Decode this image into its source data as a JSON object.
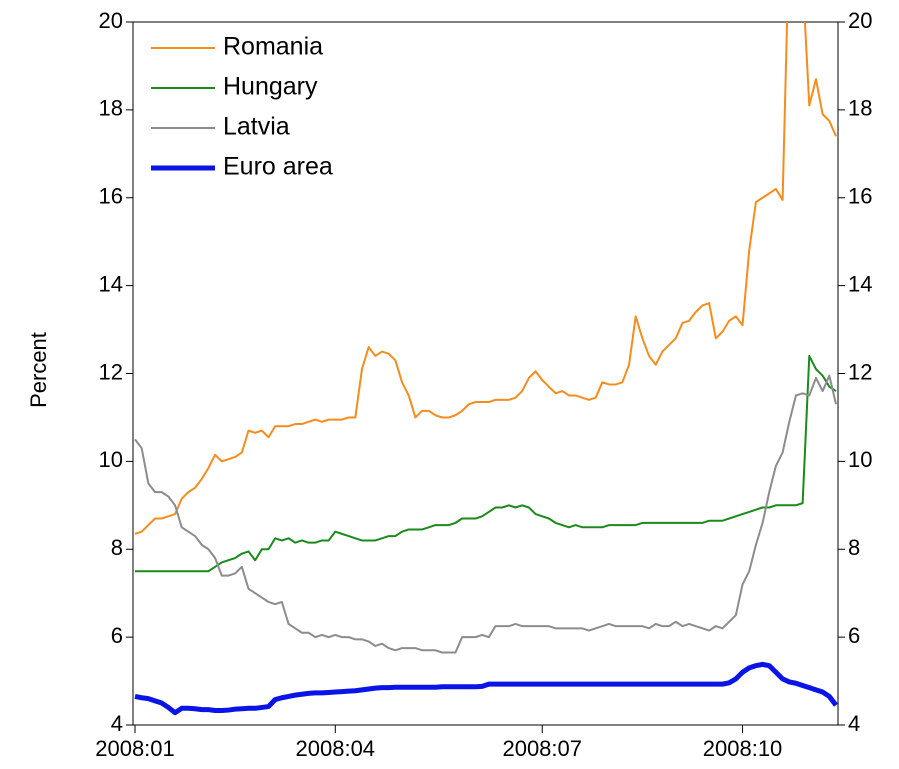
{
  "chart_data": {
    "type": "line",
    "y_label": "Percent",
    "categories": [
      "2008:01",
      null,
      null,
      null,
      null,
      null,
      null,
      null,
      null,
      null,
      null,
      null,
      null,
      null,
      null,
      null,
      null,
      null,
      null,
      null,
      null,
      null,
      null,
      null,
      null,
      null,
      null,
      null,
      null,
      null,
      "2008:04",
      null,
      null,
      null,
      null,
      null,
      null,
      null,
      null,
      null,
      null,
      null,
      null,
      null,
      null,
      null,
      null,
      null,
      null,
      null,
      null,
      null,
      null,
      null,
      null,
      null,
      null,
      null,
      null,
      null,
      null,
      "2008:07",
      null,
      null,
      null,
      null,
      null,
      null,
      null,
      null,
      null,
      null,
      null,
      null,
      null,
      null,
      null,
      null,
      null,
      null,
      null,
      null,
      null,
      null,
      null,
      null,
      null,
      null,
      null,
      null,
      null,
      "2008:10",
      null,
      null,
      null,
      null,
      null,
      null,
      null,
      null,
      null,
      null,
      null,
      null,
      null,
      null
    ],
    "series": [
      {
        "name": "Romania",
        "color": "#f58c1e",
        "width": 2,
        "values": [
          8.35,
          8.4,
          8.55,
          8.7,
          8.7,
          8.75,
          8.8,
          9.15,
          9.3,
          9.4,
          9.6,
          9.85,
          10.15,
          10.0,
          10.05,
          10.1,
          10.2,
          10.7,
          10.65,
          10.7,
          10.55,
          10.8,
          10.8,
          10.8,
          10.85,
          10.85,
          10.9,
          10.95,
          10.9,
          10.95,
          10.95,
          10.95,
          11.0,
          11.0,
          12.1,
          12.6,
          12.4,
          12.5,
          12.45,
          12.3,
          11.8,
          11.5,
          11.0,
          11.15,
          11.15,
          11.05,
          11.0,
          11.0,
          11.05,
          11.15,
          11.3,
          11.35,
          11.35,
          11.35,
          11.4,
          11.4,
          11.4,
          11.45,
          11.6,
          11.9,
          12.05,
          11.85,
          11.7,
          11.55,
          11.6,
          11.5,
          11.5,
          11.45,
          11.4,
          11.45,
          11.8,
          11.75,
          11.75,
          11.8,
          12.2,
          13.3,
          12.8,
          12.4,
          12.2,
          12.5,
          12.65,
          12.8,
          13.15,
          13.2,
          13.4,
          13.55,
          13.6,
          12.8,
          12.95,
          13.2,
          13.3,
          13.1,
          14.8,
          15.9,
          16.0,
          16.1,
          16.2,
          15.95,
          22,
          22,
          21,
          18.1,
          18.7,
          17.9,
          17.75,
          17.4
        ]
      },
      {
        "name": "Hungary",
        "color": "#1a8a1a",
        "width": 2,
        "values": [
          7.5,
          7.5,
          7.5,
          7.5,
          7.5,
          7.5,
          7.5,
          7.5,
          7.5,
          7.5,
          7.5,
          7.5,
          7.6,
          7.7,
          7.75,
          7.8,
          7.9,
          7.95,
          7.75,
          8.0,
          8.0,
          8.25,
          8.2,
          8.25,
          8.15,
          8.2,
          8.15,
          8.15,
          8.2,
          8.2,
          8.4,
          8.35,
          8.3,
          8.25,
          8.2,
          8.2,
          8.2,
          8.25,
          8.3,
          8.3,
          8.4,
          8.45,
          8.45,
          8.45,
          8.5,
          8.55,
          8.55,
          8.55,
          8.6,
          8.7,
          8.7,
          8.7,
          8.75,
          8.85,
          8.95,
          8.95,
          9.0,
          8.95,
          9.0,
          8.95,
          8.8,
          8.75,
          8.7,
          8.6,
          8.55,
          8.5,
          8.55,
          8.5,
          8.5,
          8.5,
          8.5,
          8.55,
          8.55,
          8.55,
          8.55,
          8.55,
          8.6,
          8.6,
          8.6,
          8.6,
          8.6,
          8.6,
          8.6,
          8.6,
          8.6,
          8.6,
          8.65,
          8.65,
          8.65,
          8.7,
          8.75,
          8.8,
          8.85,
          8.9,
          8.95,
          8.95,
          9.0,
          9.0,
          9.0,
          9.0,
          9.05,
          12.4,
          12.1,
          11.95,
          11.7,
          11.6
        ]
      },
      {
        "name": "Latvia",
        "color": "#8c8c8c",
        "width": 2,
        "values": [
          10.5,
          10.3,
          9.5,
          9.3,
          9.3,
          9.2,
          9.0,
          8.5,
          8.4,
          8.3,
          8.1,
          8.0,
          7.8,
          7.4,
          7.4,
          7.45,
          7.6,
          7.1,
          7.0,
          6.9,
          6.8,
          6.75,
          6.8,
          6.3,
          6.2,
          6.1,
          6.1,
          6.0,
          6.05,
          6.0,
          6.05,
          6.0,
          6.0,
          5.95,
          5.95,
          5.9,
          5.8,
          5.85,
          5.75,
          5.7,
          5.75,
          5.75,
          5.75,
          5.7,
          5.7,
          5.7,
          5.65,
          5.65,
          5.65,
          6.0,
          6.0,
          6.0,
          6.05,
          6.0,
          6.25,
          6.25,
          6.25,
          6.3,
          6.25,
          6.25,
          6.25,
          6.25,
          6.25,
          6.2,
          6.2,
          6.2,
          6.2,
          6.2,
          6.15,
          6.2,
          6.25,
          6.3,
          6.25,
          6.25,
          6.25,
          6.25,
          6.25,
          6.2,
          6.3,
          6.25,
          6.25,
          6.35,
          6.25,
          6.3,
          6.25,
          6.2,
          6.15,
          6.25,
          6.2,
          6.35,
          6.5,
          7.2,
          7.5,
          8.1,
          8.6,
          9.3,
          9.9,
          10.2,
          10.9,
          11.5,
          11.55,
          11.5,
          11.9,
          11.6,
          11.95,
          11.3
        ]
      },
      {
        "name": "Euro area",
        "color": "#0a14e6",
        "width": 5,
        "values": [
          4.65,
          4.62,
          4.6,
          4.55,
          4.5,
          4.4,
          4.28,
          4.38,
          4.38,
          4.37,
          4.35,
          4.35,
          4.33,
          4.33,
          4.34,
          4.36,
          4.37,
          4.38,
          4.38,
          4.4,
          4.42,
          4.58,
          4.62,
          4.65,
          4.68,
          4.7,
          4.72,
          4.73,
          4.73,
          4.74,
          4.75,
          4.76,
          4.77,
          4.78,
          4.8,
          4.82,
          4.84,
          4.85,
          4.85,
          4.86,
          4.86,
          4.86,
          4.86,
          4.86,
          4.86,
          4.86,
          4.87,
          4.87,
          4.87,
          4.87,
          4.87,
          4.87,
          4.88,
          4.93,
          4.93,
          4.93,
          4.93,
          4.93,
          4.93,
          4.93,
          4.93,
          4.93,
          4.93,
          4.93,
          4.93,
          4.93,
          4.93,
          4.93,
          4.93,
          4.93,
          4.93,
          4.93,
          4.93,
          4.93,
          4.93,
          4.93,
          4.93,
          4.93,
          4.93,
          4.93,
          4.93,
          4.93,
          4.93,
          4.93,
          4.93,
          4.93,
          4.93,
          4.93,
          4.93,
          4.96,
          5.05,
          5.2,
          5.3,
          5.35,
          5.38,
          5.35,
          5.2,
          5.05,
          4.98,
          4.95,
          4.9,
          4.85,
          4.8,
          4.75,
          4.65,
          4.45
        ]
      }
    ],
    "ylim": [
      4,
      20
    ],
    "yticks": [
      4,
      6,
      8,
      10,
      12,
      14,
      16,
      18,
      20
    ],
    "y2lim": [
      4,
      20
    ],
    "y2ticks": [
      4,
      6,
      8,
      10,
      12,
      14,
      16,
      18,
      20
    ],
    "legend": "upper left",
    "grid": false
  }
}
